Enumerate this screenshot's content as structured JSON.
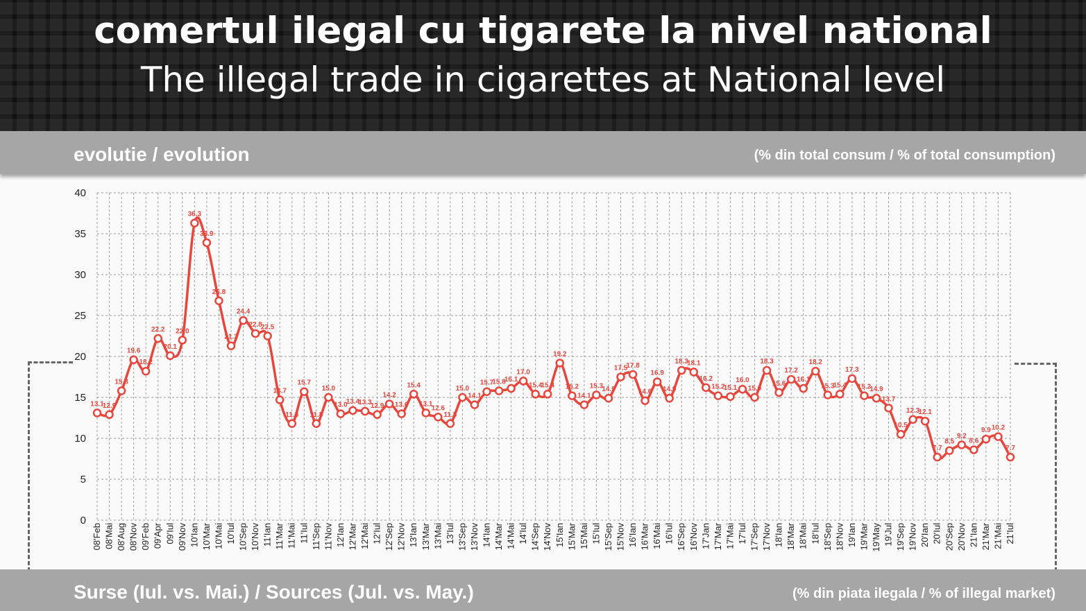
{
  "header": {
    "title_ro": "comertul ilegal cu tigarete la nivel national",
    "title_en": "The illegal trade in cigarettes at National level"
  },
  "band_top": {
    "left": "evolutie / evolution",
    "right": "(% din total consum / % of total consumption)"
  },
  "band_bottom": {
    "left": "Surse (Iul. vs. Mai.) / Sources (Jul. vs. May.)",
    "right": "(% din piata ilegala / % of illegal market)"
  },
  "colors": {
    "line": "#e8453c",
    "band": "#a6a6a6",
    "header_bg": "#111111"
  },
  "chart_data": {
    "type": "line",
    "title": "",
    "xlabel": "",
    "ylabel": "",
    "ylim": [
      0,
      40
    ],
    "yticks": [
      0,
      5,
      10,
      15,
      20,
      25,
      30,
      35,
      40
    ],
    "grid": true,
    "categories": [
      "08'Feb",
      "08'Mai",
      "08'Aug",
      "08'Nov",
      "09'Feb",
      "09'Apr",
      "09'Iul",
      "09'Nov",
      "10'Ian",
      "10'Mar",
      "10'Mai",
      "10'Iul",
      "10'Sep",
      "10'Nov",
      "11'Ian",
      "11'Mar",
      "11'Mai",
      "11'Iul",
      "11'Sep",
      "11'Nov",
      "12'Ian",
      "12'Mar",
      "12'Mai",
      "12'Iul",
      "12'Sep",
      "12'Nov",
      "13'Ian",
      "13'Mar",
      "13'Mai",
      "13'Iul",
      "13'Sep",
      "13'Nov",
      "14'Ian",
      "14'Mar",
      "14'Mai",
      "14'Iul",
      "14'Sep",
      "14'Nov",
      "15'Ian",
      "15'Mar",
      "15'Mai",
      "15'Iul",
      "15'Sep",
      "15'Nov",
      "16'Ian",
      "16'Mar",
      "16'Mai",
      "16'Iul",
      "16'Sep",
      "16'Nov",
      "17'Jan",
      "17'Mar",
      "17'Mai",
      "17'Iul",
      "17'Sep",
      "17'Nov",
      "18'Ian",
      "18'Mar",
      "18'Mai",
      "18'Iul",
      "18'Sep",
      "18'Nov",
      "19'Ian",
      "19'Mar",
      "19'May",
      "19'Jul",
      "19'Sep",
      "19'Nov",
      "20'Ian",
      "20'Iul",
      "20'Sep",
      "20'Nov",
      "21'Ian",
      "21'Mar",
      "21'Mai",
      "21'Iul"
    ],
    "series": [
      {
        "values": [
          13.1,
          12.9,
          15.8,
          19.6,
          18.2,
          22.2,
          20.1,
          22.0,
          36.3,
          33.9,
          26.8,
          21.3,
          24.4,
          22.8,
          22.5,
          14.7,
          11.8,
          15.7,
          11.8,
          15.0,
          13.0,
          13.4,
          13.3,
          12.9,
          14.2,
          13.0,
          15.4,
          13.1,
          12.6,
          11.8,
          15.0,
          14.1,
          15.7,
          15.8,
          16.1,
          17.0,
          15.4,
          15.4,
          19.2,
          15.2,
          14.1,
          15.3,
          14.9,
          17.5,
          17.8,
          14.6,
          16.9,
          14.9,
          18.3,
          18.1,
          16.2,
          15.2,
          15.1,
          16.0,
          15.0,
          18.3,
          15.6,
          17.2,
          16.1,
          18.2,
          15.3,
          15.4,
          17.3,
          15.2,
          14.9,
          13.7,
          10.5,
          12.3,
          12.1,
          7.7,
          8.5,
          9.2,
          8.6,
          9.9,
          10.2,
          7.7
        ]
      }
    ]
  }
}
